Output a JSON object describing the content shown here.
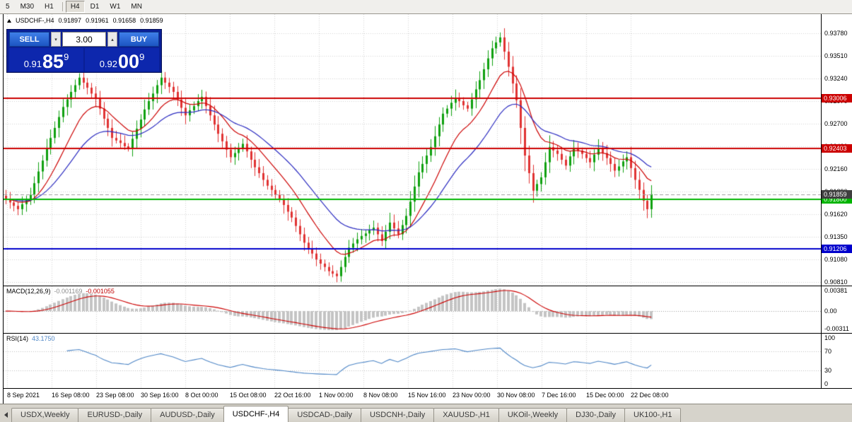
{
  "toolbar": {
    "timeframes": [
      "5",
      "M30",
      "H1",
      "H4",
      "D1",
      "W1",
      "MN"
    ],
    "active": "H4",
    "separator_after": "H1"
  },
  "chart_header": {
    "symbol": "USDCHF-,H4",
    "open": "0.91897",
    "high": "0.91961",
    "low": "0.91658",
    "close": "0.91859"
  },
  "trade_panel": {
    "sell_label": "SELL",
    "buy_label": "BUY",
    "volume": "3.00",
    "spin_down_glyph": "▾",
    "spin_up_glyph": "▴",
    "sell_price": {
      "small": "0.91",
      "big": "85",
      "sup": "9"
    },
    "buy_price": {
      "small": "0.92",
      "big": "00",
      "sup": "9"
    }
  },
  "price_axis": {
    "max": 0.94008,
    "min": 0.90768,
    "labels": [
      {
        "label": "0.93780",
        "value": 0.9378
      },
      {
        "label": "0.93510",
        "value": 0.9351
      },
      {
        "label": "0.93240",
        "value": 0.9324
      },
      {
        "label": "0.92970",
        "value": 0.9297
      },
      {
        "label": "0.92700",
        "value": 0.927
      },
      {
        "label": "0.92430",
        "value": 0.9243
      },
      {
        "label": "0.92160",
        "value": 0.9216
      },
      {
        "label": "0.91890",
        "value": 0.9189
      },
      {
        "label": "0.91620",
        "value": 0.9162
      },
      {
        "label": "0.91350",
        "value": 0.9135
      },
      {
        "label": "0.91080",
        "value": 0.9108
      },
      {
        "label": "0.90810",
        "value": 0.9081
      }
    ]
  },
  "levels": [
    {
      "label": "0.93006",
      "value": 0.93006,
      "color": "#cc0000"
    },
    {
      "label": "0.92403",
      "value": 0.92403,
      "color": "#cc0000"
    },
    {
      "label": "0.91800",
      "value": 0.918,
      "color": "#00b400"
    },
    {
      "label": "0.91206",
      "value": 0.91206,
      "color": "#0000cc"
    }
  ],
  "current_price": {
    "label": "0.91859",
    "value": 0.91859,
    "color": "#3f3f3f"
  },
  "macd_panel": {
    "name": "MACD(12,26,9)",
    "value1": "-0.001169",
    "value2": "-0.001055",
    "max": 0.0042,
    "min": -0.0037,
    "axis": [
      {
        "label": "0.00381",
        "value": 0.00381
      },
      {
        "label": "0.00",
        "value": 0
      },
      {
        "label": "-0.00311",
        "value": -0.00311
      }
    ]
  },
  "rsi_panel": {
    "name": "RSI(14)",
    "value": "43.1750",
    "grid_levels": [
      70,
      30
    ],
    "axis": [
      {
        "label": "100",
        "value": 100
      },
      {
        "label": "70",
        "value": 70
      },
      {
        "label": "30",
        "value": 30
      },
      {
        "label": "0",
        "value": 0
      }
    ]
  },
  "time_axis": [
    "8 Sep 2021",
    "16 Sep 08:00",
    "23 Sep 08:00",
    "30 Sep 16:00",
    "8 Oct 00:00",
    "15 Oct 08:00",
    "22 Oct 16:00",
    "1 Nov 00:00",
    "8 Nov 08:00",
    "15 Nov 16:00",
    "23 Nov 00:00",
    "30 Nov 08:00",
    "7 Dec 16:00",
    "15 Dec 00:00",
    "22 Dec 08:00"
  ],
  "tabs": {
    "items": [
      "USDX,Weekly",
      "EURUSD-,Daily",
      "AUDUSD-,Daily",
      "USDCHF-,H4",
      "USDCAD-,Daily",
      "USDCNH-,Daily",
      "XAUUSD-,H1",
      "UKOil-,Weekly",
      "DJ30-,Daily",
      "UK100-,H1"
    ],
    "active_index": 3
  },
  "chart_data": {
    "type": "candlestick",
    "title": "USDCHF-,H4",
    "symbol": "USDCHF",
    "timeframe": "H4",
    "ylim": [
      0.90768,
      0.94008
    ],
    "indicators": [
      "EMA(12) red",
      "EMA(26) blue",
      "MACD(12,26,9)",
      "RSI(14)"
    ],
    "shift_fraction": 0.795,
    "closes": [
      0.918,
      0.9176,
      0.9172,
      0.9168,
      0.9174,
      0.9179,
      0.9185,
      0.9199,
      0.9213,
      0.9226,
      0.924,
      0.9253,
      0.9265,
      0.9278,
      0.929,
      0.9299,
      0.9308,
      0.9316,
      0.9325,
      0.9319,
      0.9313,
      0.9306,
      0.93,
      0.9288,
      0.9276,
      0.9265,
      0.9253,
      0.925,
      0.9247,
      0.9243,
      0.924,
      0.9252,
      0.9264,
      0.9275,
      0.9287,
      0.9297,
      0.9306,
      0.9316,
      0.9325,
      0.9319,
      0.9314,
      0.9308,
      0.9299,
      0.9289,
      0.928,
      0.9286,
      0.9291,
      0.9297,
      0.9302,
      0.9291,
      0.928,
      0.9269,
      0.9258,
      0.9249,
      0.9239,
      0.923,
      0.9235,
      0.9241,
      0.9246,
      0.9237,
      0.9227,
      0.9218,
      0.9211,
      0.9203,
      0.9196,
      0.9191,
      0.9185,
      0.918,
      0.9173,
      0.9165,
      0.9158,
      0.9148,
      0.9138,
      0.9128,
      0.9121,
      0.9115,
      0.9108,
      0.9103,
      0.9099,
      0.9094,
      0.9091,
      0.9088,
      0.9099,
      0.9111,
      0.9122,
      0.9127,
      0.9132,
      0.9136,
      0.9139,
      0.9143,
      0.9146,
      0.9138,
      0.913,
      0.9141,
      0.9152,
      0.9145,
      0.9138,
      0.9149,
      0.916,
      0.9177,
      0.9195,
      0.9212,
      0.9222,
      0.9232,
      0.9242,
      0.9255,
      0.9269,
      0.9282,
      0.9288,
      0.9295,
      0.9301,
      0.9297,
      0.9292,
      0.9288,
      0.9299,
      0.9311,
      0.9322,
      0.9335,
      0.9348,
      0.936,
      0.9367,
      0.9373,
      0.9356,
      0.9338,
      0.9318,
      0.9298,
      0.9265,
      0.9232,
      0.9211,
      0.919,
      0.9198,
      0.9206,
      0.9224,
      0.9242,
      0.9238,
      0.9234,
      0.9227,
      0.922,
      0.9231,
      0.9241,
      0.9238,
      0.9234,
      0.9229,
      0.9224,
      0.9233,
      0.9241,
      0.9235,
      0.9229,
      0.9222,
      0.9214,
      0.9219,
      0.9225,
      0.923,
      0.9217,
      0.9203,
      0.9191,
      0.9178,
      0.9168,
      0.91859
    ],
    "colors": {
      "up": "#0fa00f",
      "down": "#e03232",
      "ma_fast": "#cc0000",
      "ma_slow": "#2b2bc0",
      "macd_hist": "#c4c4c4",
      "macd_signal": "#cc0000",
      "rsi": "#4e86c6",
      "grid": "#d2d2d2"
    }
  }
}
